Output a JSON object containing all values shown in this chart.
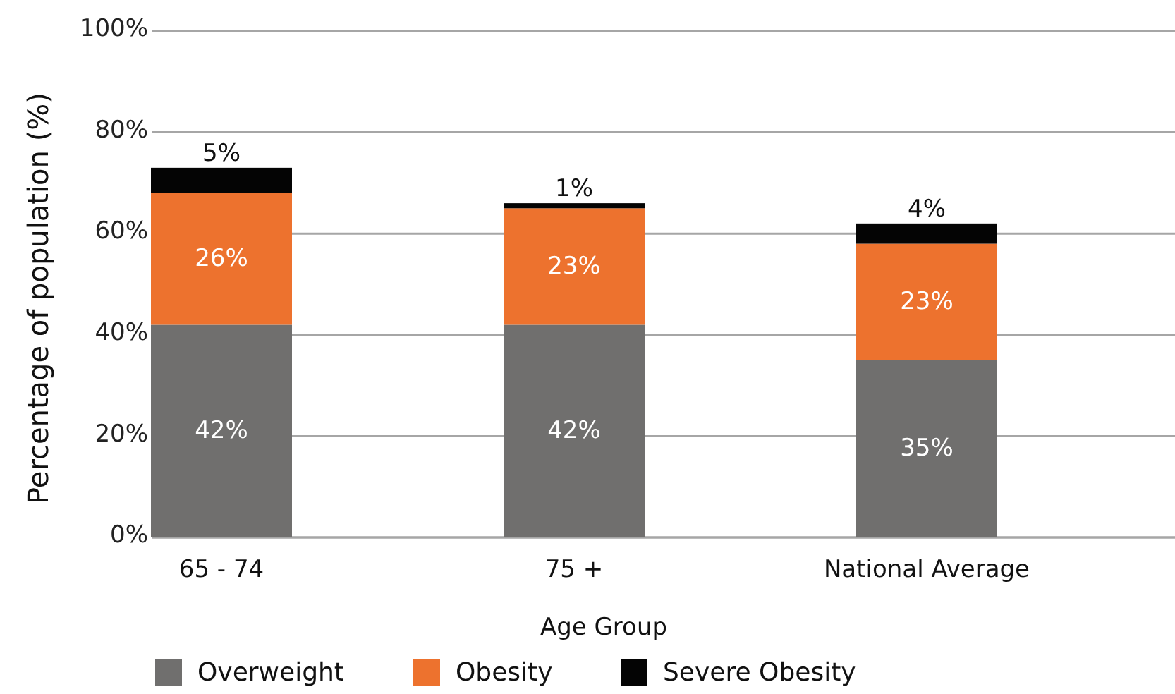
{
  "chart_data": {
    "type": "bar",
    "stacked": true,
    "xlabel": "Age Group",
    "ylabel": "Percentage of population (%)",
    "categories": [
      "65 - 74",
      "75 +",
      "National Average"
    ],
    "series": [
      {
        "name": "Overweight",
        "color": "#706f6e",
        "values": [
          42,
          42,
          35
        ],
        "value_labels": [
          "42%",
          "42%",
          "35%"
        ]
      },
      {
        "name": "Obesity",
        "color": "#ed722e",
        "values": [
          26,
          23,
          23
        ],
        "value_labels": [
          "26%",
          "23%",
          "23%"
        ]
      },
      {
        "name": "Severe Obesity",
        "color": "#040404",
        "values": [
          5,
          1,
          4
        ],
        "value_labels": [
          "5%",
          "1%",
          "4%"
        ]
      }
    ],
    "ylim": [
      0,
      100
    ],
    "yticks": [
      {
        "value": 0,
        "label": "0%"
      },
      {
        "value": 20,
        "label": "20%"
      },
      {
        "value": 40,
        "label": "40%"
      },
      {
        "value": 60,
        "label": "60%"
      },
      {
        "value": 80,
        "label": "80%"
      },
      {
        "value": 100,
        "label": "100%"
      }
    ],
    "grid": "y",
    "legend": "bottom"
  }
}
